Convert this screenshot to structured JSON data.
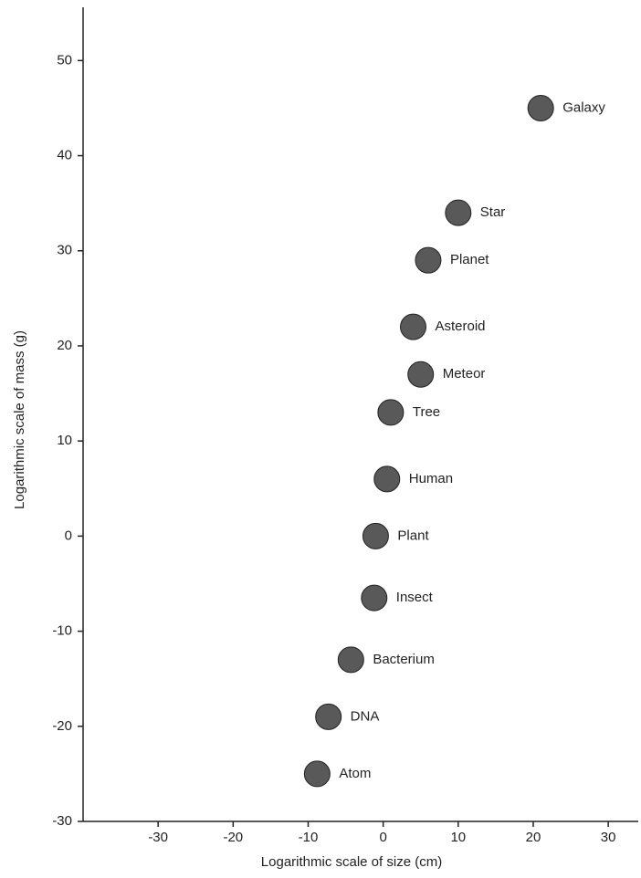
{
  "chart_data": {
    "type": "scatter",
    "x_label": "Logarithmic scale of size (cm)",
    "y_label": "Logarithmic scale of mass (g)",
    "labels": [
      "Galaxy",
      "Star",
      "Planet",
      "Asteroid",
      "Meteor",
      "Tree",
      "Human",
      "Plant",
      "Insect",
      "Bacterium",
      "DNA",
      "Atom"
    ],
    "x": [
      21,
      10,
      6,
      4,
      5,
      1,
      0.5,
      -1,
      -1.2,
      -4.3,
      -7.3,
      -8.8
    ],
    "y": [
      45,
      34,
      29,
      22,
      17,
      13,
      6,
      0,
      -6.5,
      -13,
      -19,
      -25
    ],
    "color": "#222222",
    "xlim": [
      -40,
      34
    ],
    "xticks": [
      -30,
      -20,
      -10,
      0,
      10,
      20,
      30
    ],
    "ylim": [
      -30,
      55.6
    ],
    "yticks": [
      -30,
      -20,
      -10,
      0,
      10,
      20,
      30,
      40,
      50
    ]
  }
}
